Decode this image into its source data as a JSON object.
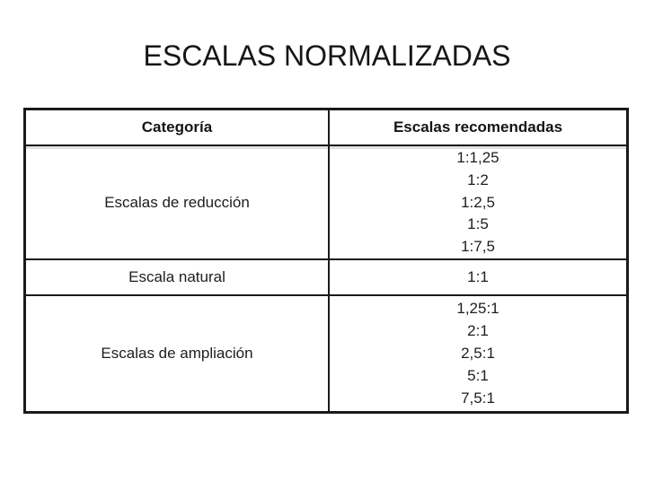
{
  "slide_title": "ESCALAS NORMALIZADAS",
  "table": {
    "columns": [
      "Categoría",
      "Escalas recomendadas"
    ],
    "rows": [
      {
        "category": "Escalas de reducción",
        "scales": [
          "1:1,25",
          "1:2",
          "1:2,5",
          "1:5",
          "1:7,5"
        ]
      },
      {
        "category": "Escala natural",
        "scales": [
          "1:1"
        ]
      },
      {
        "category": "Escalas de ampliación",
        "scales": [
          "1,25:1",
          "2:1",
          "2,5:1",
          "5:1",
          "7,5:1"
        ]
      }
    ]
  },
  "colors": {
    "ink": "#1d1d1d",
    "border": "#1a1a1a",
    "background": "#ffffff"
  }
}
